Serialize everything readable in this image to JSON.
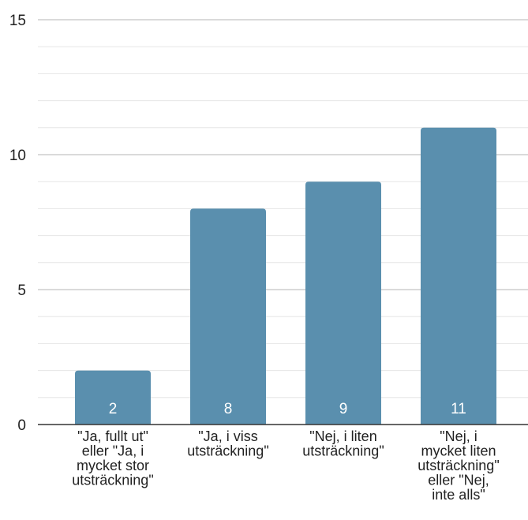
{
  "chart_data": {
    "type": "bar",
    "title": "",
    "xlabel": "",
    "ylabel": "",
    "categories": [
      [
        "\"Ja, fullt ut\"",
        "eller \"Ja, i",
        "mycket stor",
        "utsträckning\""
      ],
      [
        "\"Ja, i viss",
        "utsträckning\""
      ],
      [
        "\"Nej, i liten",
        "utsträckning\""
      ],
      [
        "\"Nej, i",
        "mycket liten",
        "utsträckning\"",
        "eller \"Nej,",
        "inte alls\""
      ]
    ],
    "values": [
      2,
      8,
      9,
      11
    ],
    "data_labels": [
      "2",
      "8",
      "9",
      "11"
    ],
    "ylim": [
      0,
      15
    ],
    "yticks": [
      0,
      5,
      10,
      15
    ],
    "minor_grid_step": 1,
    "grid": true,
    "legend": "none",
    "colors": {
      "bar": "#5a8fae",
      "major_grid": "#b5b5b5",
      "minor_grid": "#e6e6e6",
      "axis": "#333333",
      "text": "#222222",
      "data_label": "#ffffff"
    }
  }
}
